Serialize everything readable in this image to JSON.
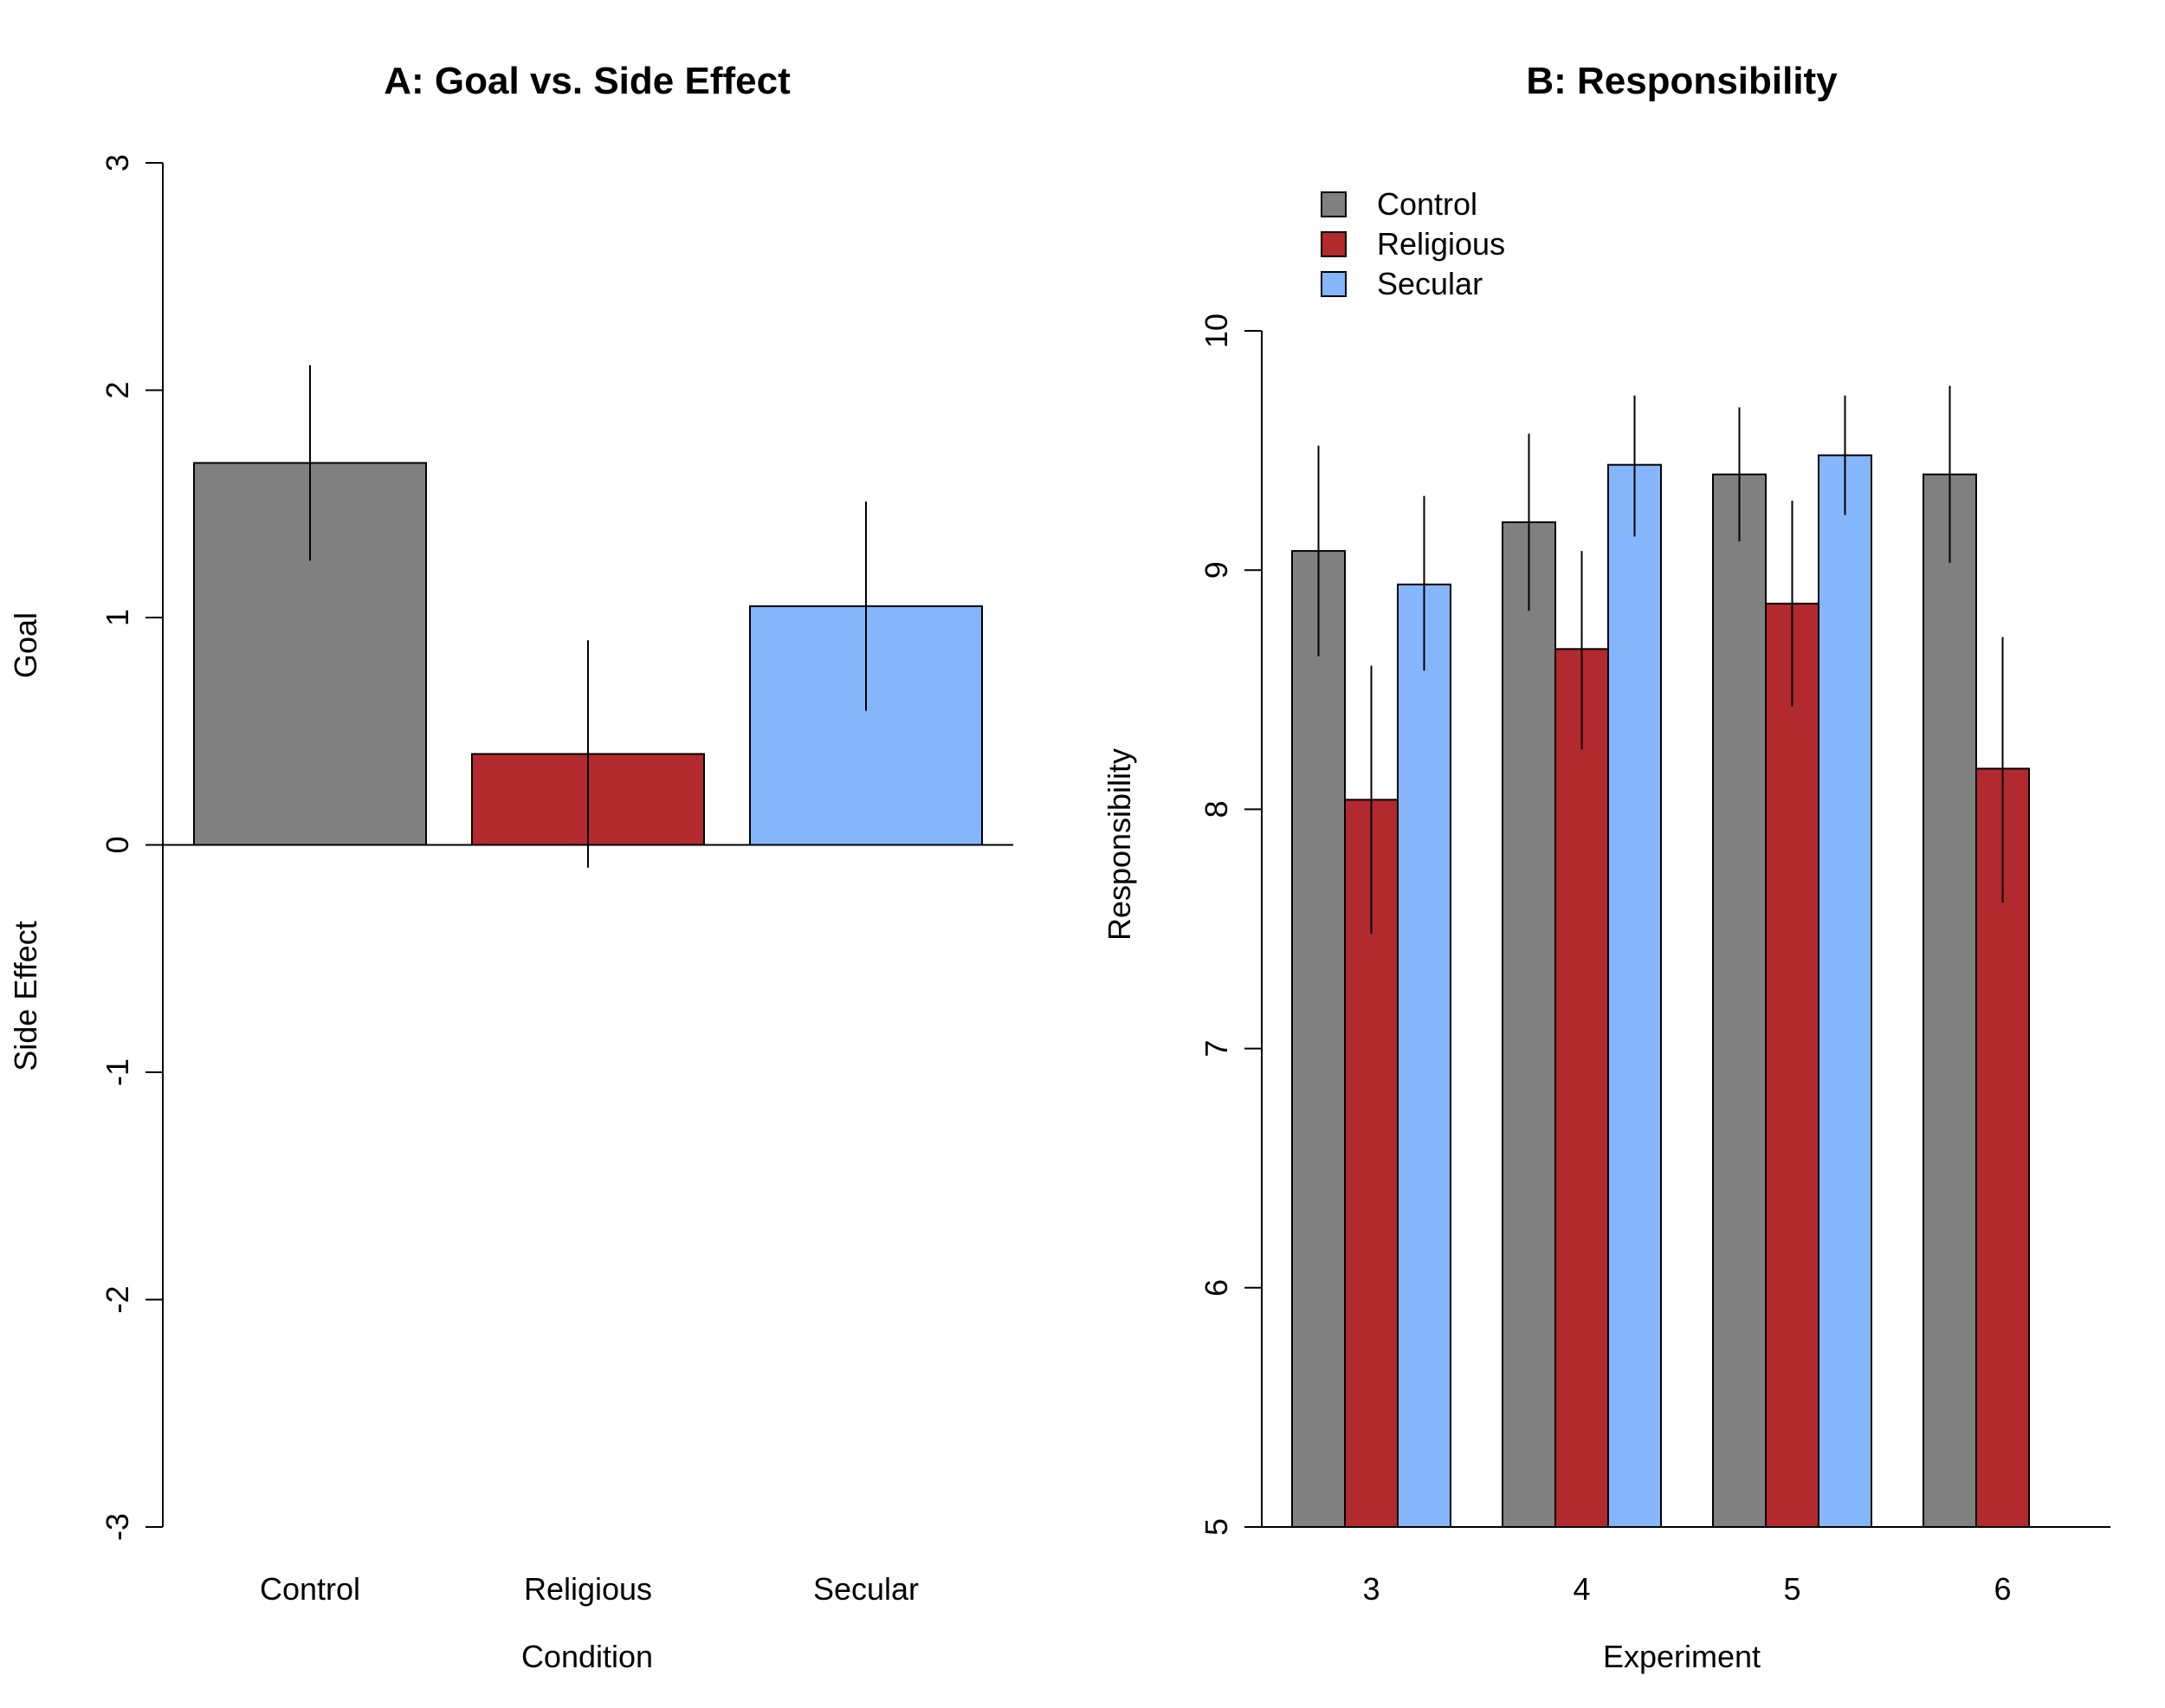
{
  "chart_data": [
    {
      "type": "bar",
      "title": "A: Goal vs. Side Effect",
      "xlabel": "Condition",
      "ylabel_top": "Goal",
      "ylabel_bottom": "Side Effect",
      "categories": [
        "Control",
        "Religious",
        "Secular"
      ],
      "values": [
        1.68,
        0.4,
        1.05
      ],
      "error_low": [
        1.25,
        -0.1,
        0.59
      ],
      "error_high": [
        2.11,
        0.9,
        1.51
      ],
      "colors": [
        "#808080",
        "#b2292e",
        "#85b6fc"
      ],
      "ylim": [
        -3,
        3
      ],
      "yticks": [
        "-3",
        "-2",
        "-1",
        "0",
        "1",
        "2",
        "3"
      ]
    },
    {
      "type": "bar",
      "title": "B: Responsibility",
      "xlabel": "Experiment",
      "ylabel": "Responsibility",
      "categories": [
        "3",
        "4",
        "5",
        "6"
      ],
      "series": [
        {
          "name": "Control",
          "color": "#808080",
          "values": [
            9.08,
            9.2,
            9.4,
            9.4
          ],
          "error_low": [
            8.64,
            8.83,
            9.12,
            9.03
          ],
          "error_high": [
            9.52,
            9.57,
            9.68,
            9.77
          ]
        },
        {
          "name": "Religious",
          "color": "#b2292e",
          "values": [
            8.04,
            8.67,
            8.86,
            8.17
          ],
          "error_low": [
            7.48,
            8.25,
            8.43,
            7.61
          ],
          "error_high": [
            8.6,
            9.08,
            9.29,
            8.72
          ]
        },
        {
          "name": "Secular",
          "color": "#85b6fc",
          "values": [
            8.94,
            9.44,
            9.48,
            null
          ],
          "error_low": [
            8.58,
            9.14,
            9.23,
            null
          ],
          "error_high": [
            9.31,
            9.73,
            9.73,
            null
          ]
        }
      ],
      "ylim": [
        5,
        10
      ],
      "yticks": [
        "5",
        "6",
        "7",
        "8",
        "9",
        "10"
      ],
      "legend_position": "top-left"
    }
  ]
}
